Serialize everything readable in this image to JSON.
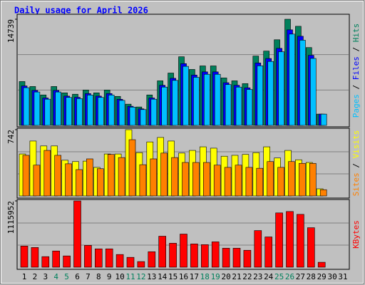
{
  "chart_data": {
    "type": "bar",
    "title": "Daily usage for April 2026",
    "categories": [
      1,
      2,
      3,
      4,
      5,
      6,
      7,
      8,
      9,
      10,
      11,
      12,
      13,
      14,
      15,
      16,
      17,
      18,
      19,
      20,
      21,
      22,
      23,
      24,
      25,
      26,
      27,
      28,
      29,
      30,
      31
    ],
    "weekends": [
      4,
      5,
      11,
      12,
      18,
      19,
      25,
      26
    ],
    "weekend_color": "#00805c",
    "label_color": "#000000",
    "panels": [
      {
        "ylim": [
          0,
          14739
        ],
        "yticks": [
          14739
        ],
        "series": [
          {
            "name": "Hits",
            "color": "#00805c",
            "values": [
              6090,
              5400,
              4230,
              5400,
              4520,
              4330,
              4910,
              4520,
              4910,
              4030,
              2950,
              2560,
              4230,
              6190,
              7270,
              9530,
              7770,
              8260,
              8260,
              6590,
              6190,
              5800,
              9630,
              10320,
              11890,
              14739,
              13760,
              10810,
              1570,
              0,
              0
            ]
          },
          {
            "name": "Files",
            "color": "#0000ff",
            "values": [
              5480,
              4860,
              3810,
              4860,
              4070,
              3900,
              4420,
              4070,
              4420,
              3630,
              2660,
              2300,
              3810,
              5570,
              6540,
              8580,
              6990,
              7430,
              7430,
              5930,
              5570,
              5220,
              8670,
              9290,
              10700,
              13270,
              12380,
              9730,
              1570,
              0,
              0
            ]
          },
          {
            "name": "Pages",
            "color": "#00c0ff",
            "values": [
              5240,
              4640,
              3640,
              4640,
              3890,
              3720,
              4220,
              3890,
              4220,
              3470,
              2540,
              2200,
              3640,
              5320,
              6250,
              8200,
              6680,
              7100,
              7100,
              5670,
              5320,
              4990,
              8280,
              8880,
              10230,
              12680,
              11830,
              9300,
              1570,
              0,
              0
            ]
          }
        ]
      },
      {
        "ylim": [
          0,
          742
        ],
        "yticks": [
          742
        ],
        "series": [
          {
            "name": "Visits",
            "color": "#ffff00",
            "values": [
              470,
              615,
              560,
              560,
              400,
              385,
              390,
              320,
              470,
              470,
              742,
              485,
              605,
              655,
              615,
              480,
              510,
              550,
              535,
              445,
              455,
              465,
              485,
              550,
              425,
              510,
              405,
              375,
              80,
              0,
              0
            ]
          },
          {
            "name": "Sites",
            "color": "#ff8000",
            "values": [
              455,
              345,
              510,
              455,
              360,
              295,
              415,
              305,
              465,
              430,
              630,
              350,
              415,
              480,
              430,
              375,
              375,
              375,
              345,
              320,
              345,
              320,
              310,
              385,
              320,
              385,
              365,
              365,
              70,
              0,
              0
            ]
          }
        ]
      },
      {
        "ylim": [
          0,
          1115952
        ],
        "yticks": [
          1115952
        ],
        "series": [
          {
            "name": "KBytes",
            "color": "#ff0000",
            "values": [
              356000,
              332000,
              178000,
              273000,
              190000,
              1115952,
              368000,
              309000,
              309000,
              214000,
              166000,
              95000,
              261000,
              522000,
              404000,
              558000,
              392000,
              380000,
              427000,
              320000,
              320000,
              285000,
              617000,
              510000,
              914000,
              938000,
              890000,
              665000,
              83000,
              0,
              0
            ]
          }
        ]
      }
    ]
  }
}
